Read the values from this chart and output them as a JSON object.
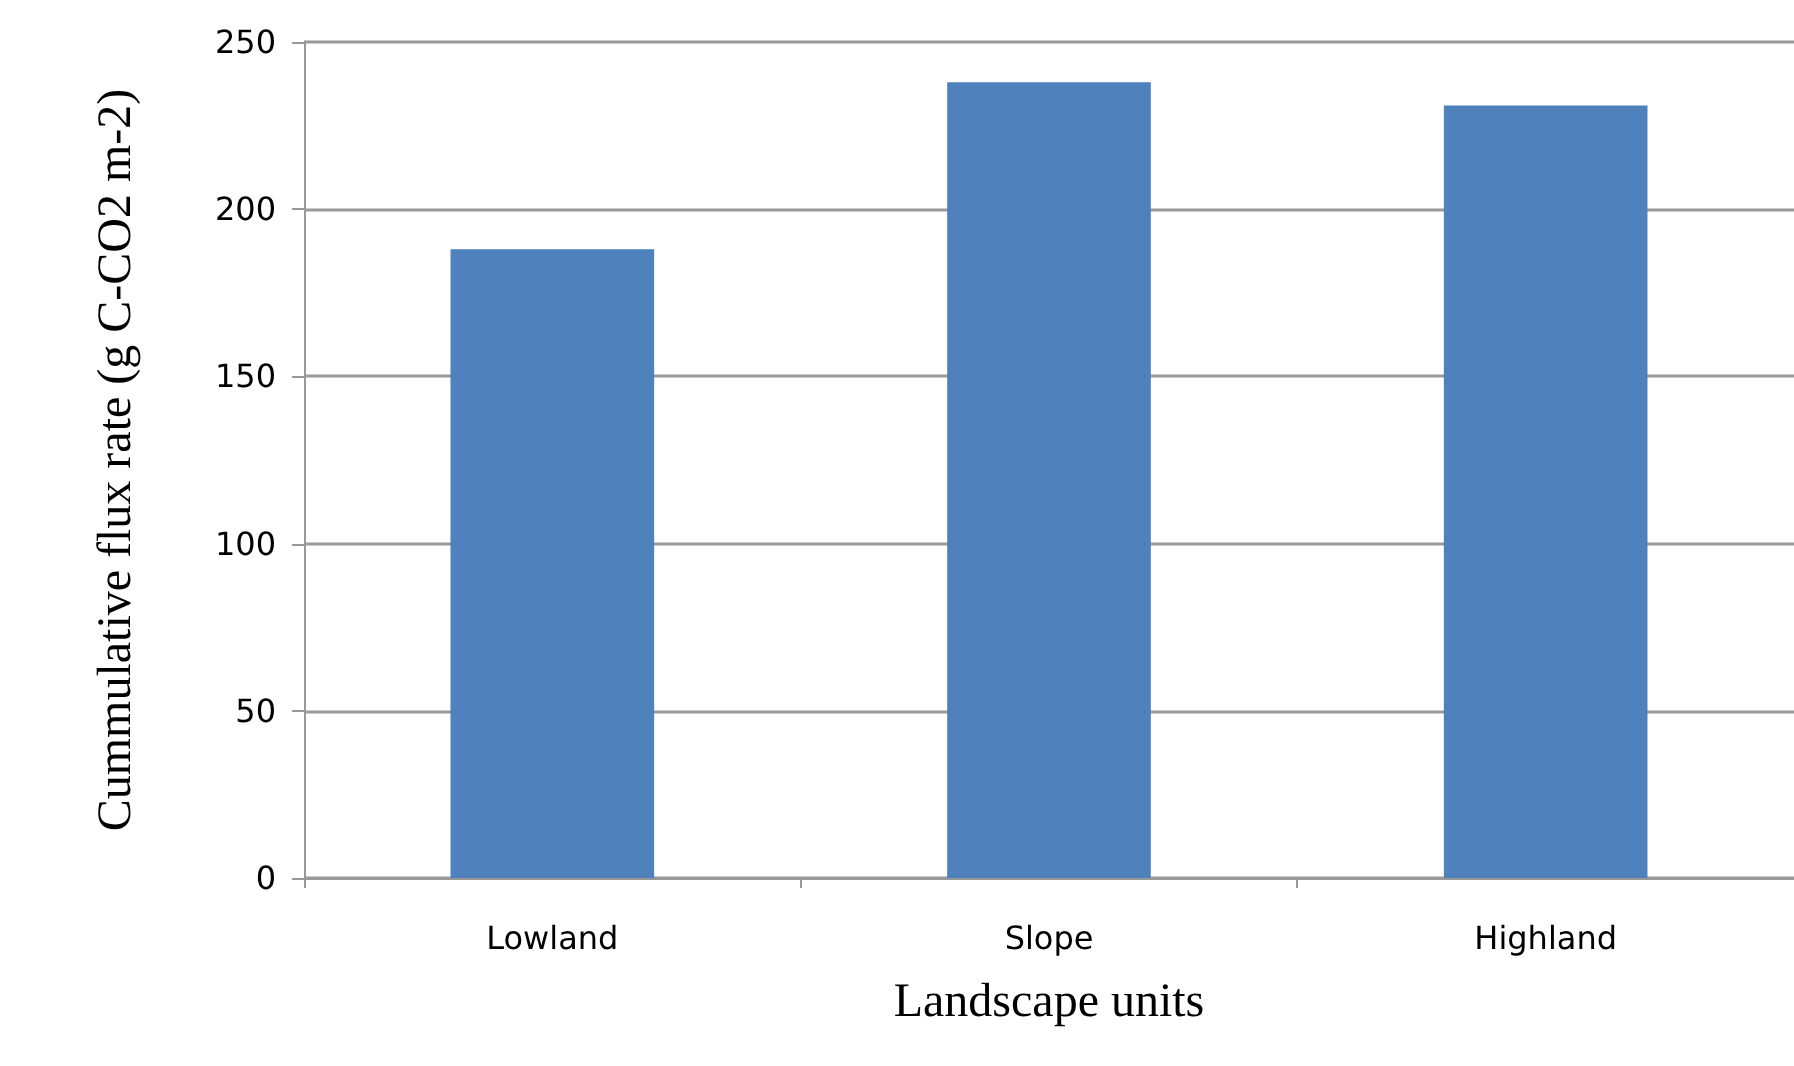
{
  "chart_data": {
    "type": "bar",
    "xlabel": "Landscape units",
    "ylabel": "Cummulative flux rate (g C-CO2 m-2)",
    "categories": [
      "Lowland",
      "Slope",
      "Highland"
    ],
    "values": [
      188,
      238,
      231
    ],
    "color": "#4f81bd",
    "ylim": [
      0,
      250
    ],
    "yticks": [
      0,
      50,
      100,
      150,
      200,
      250
    ],
    "grid": "y"
  }
}
